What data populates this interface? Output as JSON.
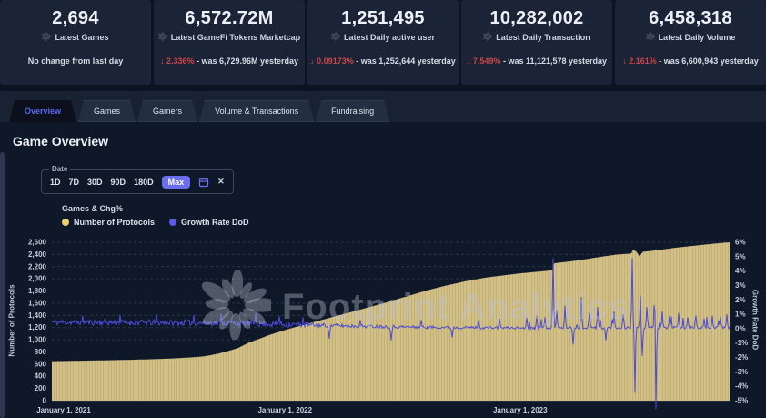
{
  "cards": [
    {
      "value": "2,694",
      "label": "Latest Games",
      "note": "No change from last day"
    },
    {
      "value": "6,572.72M",
      "label": "Latest GameFi Tokens Marketcap",
      "change": {
        "direction": "down",
        "pct": "2.336%",
        "rest": "- was 6,729.96M yesterday"
      }
    },
    {
      "value": "1,251,495",
      "label": "Latest Daily active user",
      "change": {
        "direction": "down",
        "pct": "0.09173%",
        "rest": "- was 1,252,644 yesterday"
      }
    },
    {
      "value": "10,282,002",
      "label": "Latest Daily Transaction",
      "change": {
        "direction": "down",
        "pct": "7.549%",
        "rest": "- was 11,121,578 yesterday"
      }
    },
    {
      "value": "6,458,318",
      "label": "Latest Daily Volume",
      "change": {
        "direction": "down",
        "pct": "2.161%",
        "rest": "- was 6,600,943 yesterday"
      }
    }
  ],
  "tabs": [
    {
      "label": "Overview",
      "active": true
    },
    {
      "label": "Games",
      "active": false
    },
    {
      "label": "Gamers",
      "active": false
    },
    {
      "label": "Volume & Transactions",
      "active": false
    },
    {
      "label": "Fundraising",
      "active": false
    }
  ],
  "section": {
    "heading": "Game Overview"
  },
  "date_filter": {
    "label": "Date",
    "options": [
      "1D",
      "7D",
      "30D",
      "90D",
      "180D",
      "Max"
    ],
    "selected": "Max",
    "clear_symbol": "✕"
  },
  "watermark": {
    "text": "Footprint Analytics"
  },
  "colors": {
    "accent_indigo": "#6a6ff2",
    "negative_red": "#cf4545",
    "area_fill": "#d3c088",
    "area_stripe": "#c2b175",
    "line": "#4a4bd8",
    "grid": "#2b3548",
    "axis_text": "#c3cbda",
    "panel_bg": "#0f1828"
  },
  "chart_data": {
    "type": "area+line",
    "title": "Games & Chg%",
    "legend": [
      {
        "label": "Number of Protocols",
        "color": "#e9d170"
      },
      {
        "label": "Growth Rate DoD",
        "color": "#5b5ce6"
      }
    ],
    "x_axis": {
      "ticks": [
        {
          "label": "January 1, 2021",
          "f": 0.0
        },
        {
          "label": "January 1, 2022",
          "f": 0.344
        },
        {
          "label": "January 1, 2023",
          "f": 0.691
        }
      ]
    },
    "left_axis": {
      "title": "Number of Protocols",
      "min": 0,
      "max": 2600,
      "step": 200
    },
    "right_axis": {
      "title": "Growth Rate DoD",
      "min": -5,
      "max": 6,
      "step": 1,
      "suffix": "%"
    },
    "grid": {
      "dashed": true,
      "horizontal_only": true
    },
    "series": [
      {
        "name": "Number of Protocols",
        "type": "area",
        "axis": "left",
        "color": "#d3c088",
        "keypoints": [
          [
            0.0,
            648
          ],
          [
            0.03,
            653
          ],
          [
            0.06,
            659
          ],
          [
            0.09,
            665
          ],
          [
            0.12,
            672
          ],
          [
            0.15,
            681
          ],
          [
            0.18,
            694
          ],
          [
            0.205,
            710
          ],
          [
            0.225,
            728
          ],
          [
            0.245,
            770
          ],
          [
            0.26,
            815
          ],
          [
            0.275,
            865
          ],
          [
            0.29,
            950
          ],
          [
            0.305,
            1010
          ],
          [
            0.32,
            1075
          ],
          [
            0.344,
            1160
          ],
          [
            0.37,
            1240
          ],
          [
            0.4,
            1330
          ],
          [
            0.43,
            1420
          ],
          [
            0.46,
            1510
          ],
          [
            0.49,
            1600
          ],
          [
            0.52,
            1700
          ],
          [
            0.55,
            1800
          ],
          [
            0.58,
            1885
          ],
          [
            0.61,
            1960
          ],
          [
            0.64,
            2020
          ],
          [
            0.665,
            2055
          ],
          [
            0.691,
            2090
          ],
          [
            0.715,
            2115
          ],
          [
            0.739,
            2140
          ],
          [
            0.741,
            2255
          ],
          [
            0.76,
            2280
          ],
          [
            0.778,
            2305
          ],
          [
            0.795,
            2335
          ],
          [
            0.815,
            2370
          ],
          [
            0.835,
            2400
          ],
          [
            0.855,
            2415
          ],
          [
            0.857,
            2470
          ],
          [
            0.862,
            2455
          ],
          [
            0.867,
            2370
          ],
          [
            0.872,
            2445
          ],
          [
            0.882,
            2455
          ],
          [
            0.889,
            2465
          ],
          [
            0.9,
            2480
          ],
          [
            0.92,
            2510
          ],
          [
            0.945,
            2540
          ],
          [
            0.97,
            2570
          ],
          [
            1.0,
            2600
          ]
        ]
      },
      {
        "name": "Growth Rate DoD",
        "type": "line",
        "axis": "right",
        "color": "#4a4bd8",
        "seed": 11,
        "baseline": [
          [
            0,
            0.45
          ],
          [
            0.25,
            0.4
          ],
          [
            0.344,
            0.3
          ],
          [
            0.45,
            0.18
          ],
          [
            0.55,
            0.1
          ],
          [
            0.7,
            0.05
          ],
          [
            1,
            0.08
          ]
        ],
        "noise_amp": [
          [
            0,
            0.2
          ],
          [
            0.344,
            0.2
          ],
          [
            0.42,
            0.13
          ],
          [
            0.6,
            0.09
          ],
          [
            1,
            0.09
          ]
        ],
        "spikes": [
          [
            0.045,
            0.9
          ],
          [
            0.1,
            0.95
          ],
          [
            0.155,
            1.0
          ],
          [
            0.21,
            0.95
          ],
          [
            0.25,
            1.05
          ],
          [
            0.3,
            1.1
          ],
          [
            0.335,
            0.9
          ],
          [
            0.37,
            0.8
          ],
          [
            0.41,
            -0.7
          ],
          [
            0.455,
            0.6
          ],
          [
            0.5,
            -0.8
          ],
          [
            0.545,
            0.6
          ],
          [
            0.59,
            -0.6
          ],
          [
            0.63,
            0.6
          ],
          [
            0.66,
            0.7
          ],
          [
            0.7,
            0.8
          ],
          [
            0.715,
            0.9
          ],
          [
            0.728,
            0.8
          ],
          [
            0.74,
            4.9
          ],
          [
            0.7455,
            1.3
          ],
          [
            0.757,
            1.6
          ],
          [
            0.769,
            -1.1
          ],
          [
            0.781,
            2.2
          ],
          [
            0.793,
            1.1
          ],
          [
            0.806,
            1.5
          ],
          [
            0.818,
            -0.8
          ],
          [
            0.83,
            1.2
          ],
          [
            0.843,
            1.0
          ],
          [
            0.8565,
            4.9
          ],
          [
            0.86,
            -4.4
          ],
          [
            0.868,
            2.3
          ],
          [
            0.8715,
            -1.9
          ],
          [
            0.878,
            1.5
          ],
          [
            0.8895,
            6.4
          ],
          [
            0.8912,
            -5.6
          ],
          [
            0.9,
            1.2
          ],
          [
            0.912,
            0.9
          ],
          [
            0.925,
            1.1
          ],
          [
            0.938,
            0.8
          ],
          [
            0.951,
            0.9
          ],
          [
            0.962,
            0.7
          ],
          [
            0.974,
            0.9
          ],
          [
            0.987,
            0.8
          ],
          [
            0.996,
            1.0
          ]
        ]
      }
    ]
  }
}
